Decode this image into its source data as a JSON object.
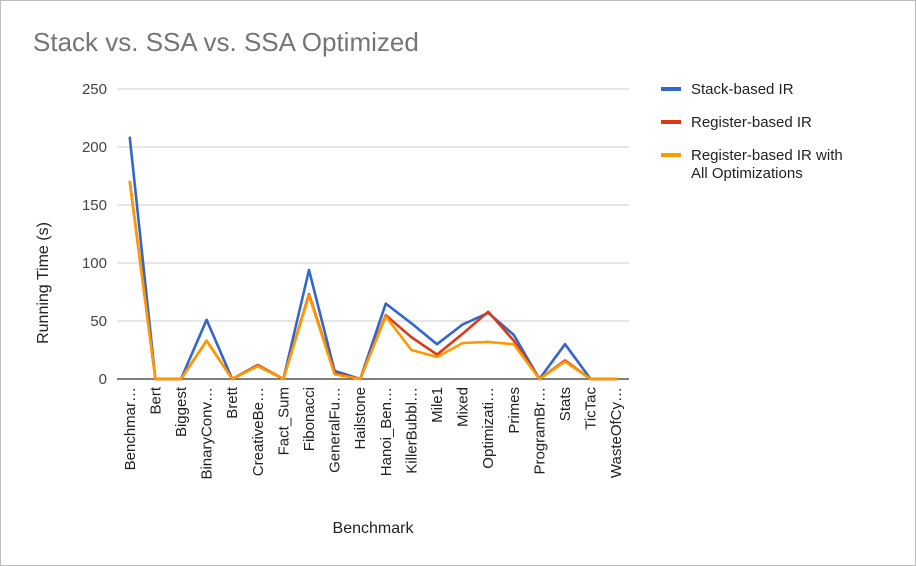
{
  "chart_data": {
    "type": "line",
    "title": "Stack vs. SSA vs. SSA Optimized",
    "xlabel": "Benchmark",
    "ylabel": "Running Time (s)",
    "ylim": [
      0,
      250
    ],
    "yticks": [
      0,
      50,
      100,
      150,
      200,
      250
    ],
    "grid": true,
    "legend_position": "right",
    "categories": [
      "Benchmar…",
      "Bert",
      "Biggest",
      "BinaryConv…",
      "Brett",
      "CreativeBe…",
      "Fact_Sum",
      "Fibonacci",
      "GeneralFu…",
      "Hailstone",
      "Hanoi_Ben…",
      "KillerBubbl…",
      "Mile1",
      "Mixed",
      "Optimizati…",
      "Primes",
      "ProgramBr…",
      "Stats",
      "TicTac",
      "WasteOfCy…"
    ],
    "series": [
      {
        "name": "Stack-based IR",
        "color": "#3366cc",
        "values": [
          208,
          0,
          0,
          51,
          0,
          12,
          0,
          94,
          7,
          0,
          65,
          48,
          30,
          47,
          57,
          38,
          0,
          30,
          0,
          0
        ]
      },
      {
        "name": "Register-based IR",
        "color": "#dc3912",
        "values": [
          170,
          0,
          0,
          33,
          0,
          12,
          0,
          73,
          5,
          0,
          55,
          36,
          21,
          39,
          58,
          33,
          0,
          16,
          0,
          0
        ]
      },
      {
        "name": "Register-based IR with All Optimizations",
        "legend_lines": [
          "Register-based IR with",
          "All Optimizations"
        ],
        "color": "#ff9900",
        "values": [
          170,
          0,
          0,
          33,
          0,
          11,
          0,
          72,
          4,
          0,
          54,
          25,
          19,
          31,
          32,
          30,
          0,
          15,
          0,
          0
        ]
      }
    ]
  }
}
